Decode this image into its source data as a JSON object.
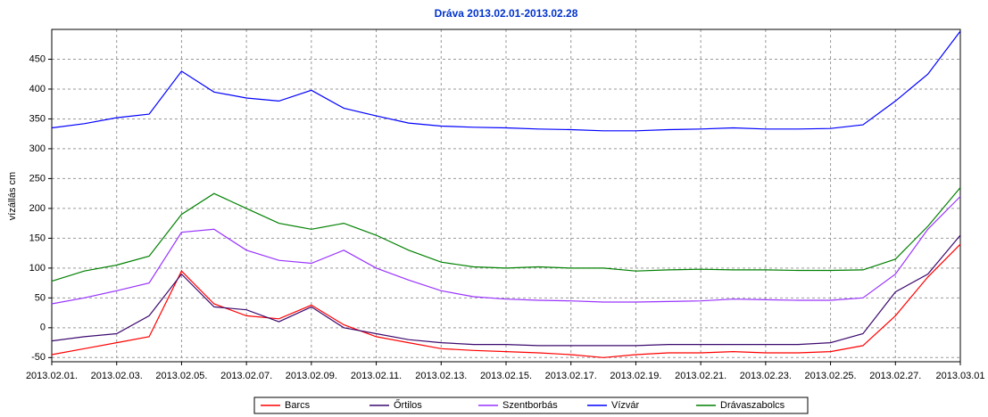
{
  "chart_data": {
    "type": "line",
    "title": "Dráva 2013.02.01-2013.02.28",
    "y_label": "vízállás cm",
    "x": [
      "2013.02.01",
      "2013.02.02",
      "2013.02.03",
      "2013.02.04",
      "2013.02.05",
      "2013.02.06",
      "2013.02.07",
      "2013.02.08",
      "2013.02.09",
      "2013.02.10",
      "2013.02.11",
      "2013.02.12",
      "2013.02.13",
      "2013.02.14",
      "2013.02.15",
      "2013.02.16",
      "2013.02.17",
      "2013.02.18",
      "2013.02.19",
      "2013.02.20",
      "2013.02.21",
      "2013.02.22",
      "2013.02.23",
      "2013.02.24",
      "2013.02.25",
      "2013.02.26",
      "2013.02.27",
      "2013.02.28",
      "2013.03.01"
    ],
    "series": [
      {
        "name": "Barcs",
        "color": "#ff0000",
        "values": [
          -45,
          -35,
          -25,
          -15,
          95,
          40,
          20,
          15,
          38,
          5,
          -15,
          -25,
          -35,
          -38,
          -40,
          -42,
          -45,
          -50,
          -45,
          -42,
          -42,
          -40,
          -42,
          -42,
          -40,
          -30,
          20,
          85,
          140
        ]
      },
      {
        "name": "Őrtilos",
        "color": "#3c0a6e",
        "values": [
          -22,
          -15,
          -10,
          20,
          90,
          35,
          30,
          10,
          35,
          0,
          -10,
          -20,
          -25,
          -28,
          -28,
          -30,
          -30,
          -30,
          -30,
          -28,
          -28,
          -28,
          -28,
          -28,
          -25,
          -10,
          60,
          90,
          155
        ]
      },
      {
        "name": "Szentborbás",
        "color": "#9933ff",
        "values": [
          40,
          50,
          62,
          75,
          160,
          165,
          130,
          113,
          108,
          130,
          100,
          80,
          62,
          52,
          48,
          46,
          45,
          43,
          43,
          44,
          45,
          48,
          47,
          46,
          46,
          50,
          90,
          165,
          220
        ]
      },
      {
        "name": "Vízvár",
        "color": "#0000ff",
        "values": [
          335,
          342,
          352,
          358,
          430,
          395,
          385,
          380,
          398,
          368,
          355,
          343,
          338,
          336,
          335,
          333,
          332,
          330,
          330,
          332,
          333,
          335,
          333,
          333,
          334,
          340,
          380,
          425,
          497
        ]
      },
      {
        "name": "Drávaszabolcs",
        "color": "#008000",
        "values": [
          78,
          95,
          105,
          120,
          190,
          225,
          200,
          175,
          165,
          175,
          155,
          130,
          110,
          102,
          100,
          102,
          100,
          100,
          95,
          97,
          98,
          97,
          97,
          96,
          96,
          97,
          115,
          170,
          235
        ]
      }
    ],
    "xlim": [
      "2013.02.01",
      "2013.03.01"
    ],
    "xticks": [
      {
        "value": "2013.02.01",
        "label": "2013.02.01."
      },
      {
        "value": "2013.02.03",
        "label": "2013.02.03."
      },
      {
        "value": "2013.02.05",
        "label": "2013.02.05."
      },
      {
        "value": "2013.02.07",
        "label": "2013.02.07."
      },
      {
        "value": "2013.02.09",
        "label": "2013.02.09."
      },
      {
        "value": "2013.02.11",
        "label": "2013.02.11."
      },
      {
        "value": "2013.02.13",
        "label": "2013.02.13."
      },
      {
        "value": "2013.02.15",
        "label": "2013.02.15."
      },
      {
        "value": "2013.02.17",
        "label": "2013.02.17."
      },
      {
        "value": "2013.02.19",
        "label": "2013.02.19."
      },
      {
        "value": "2013.02.21",
        "label": "2013.02.21."
      },
      {
        "value": "2013.02.23",
        "label": "2013.02.23."
      },
      {
        "value": "2013.02.25",
        "label": "2013.02.25."
      },
      {
        "value": "2013.02.27",
        "label": "2013.02.27."
      },
      "2013.03.01"
    ],
    "ylim": [
      -57,
      500
    ],
    "yticks": [
      -50,
      0,
      50,
      100,
      150,
      200,
      250,
      300,
      350,
      400,
      450
    ],
    "grid": true,
    "legend": "bottom"
  }
}
